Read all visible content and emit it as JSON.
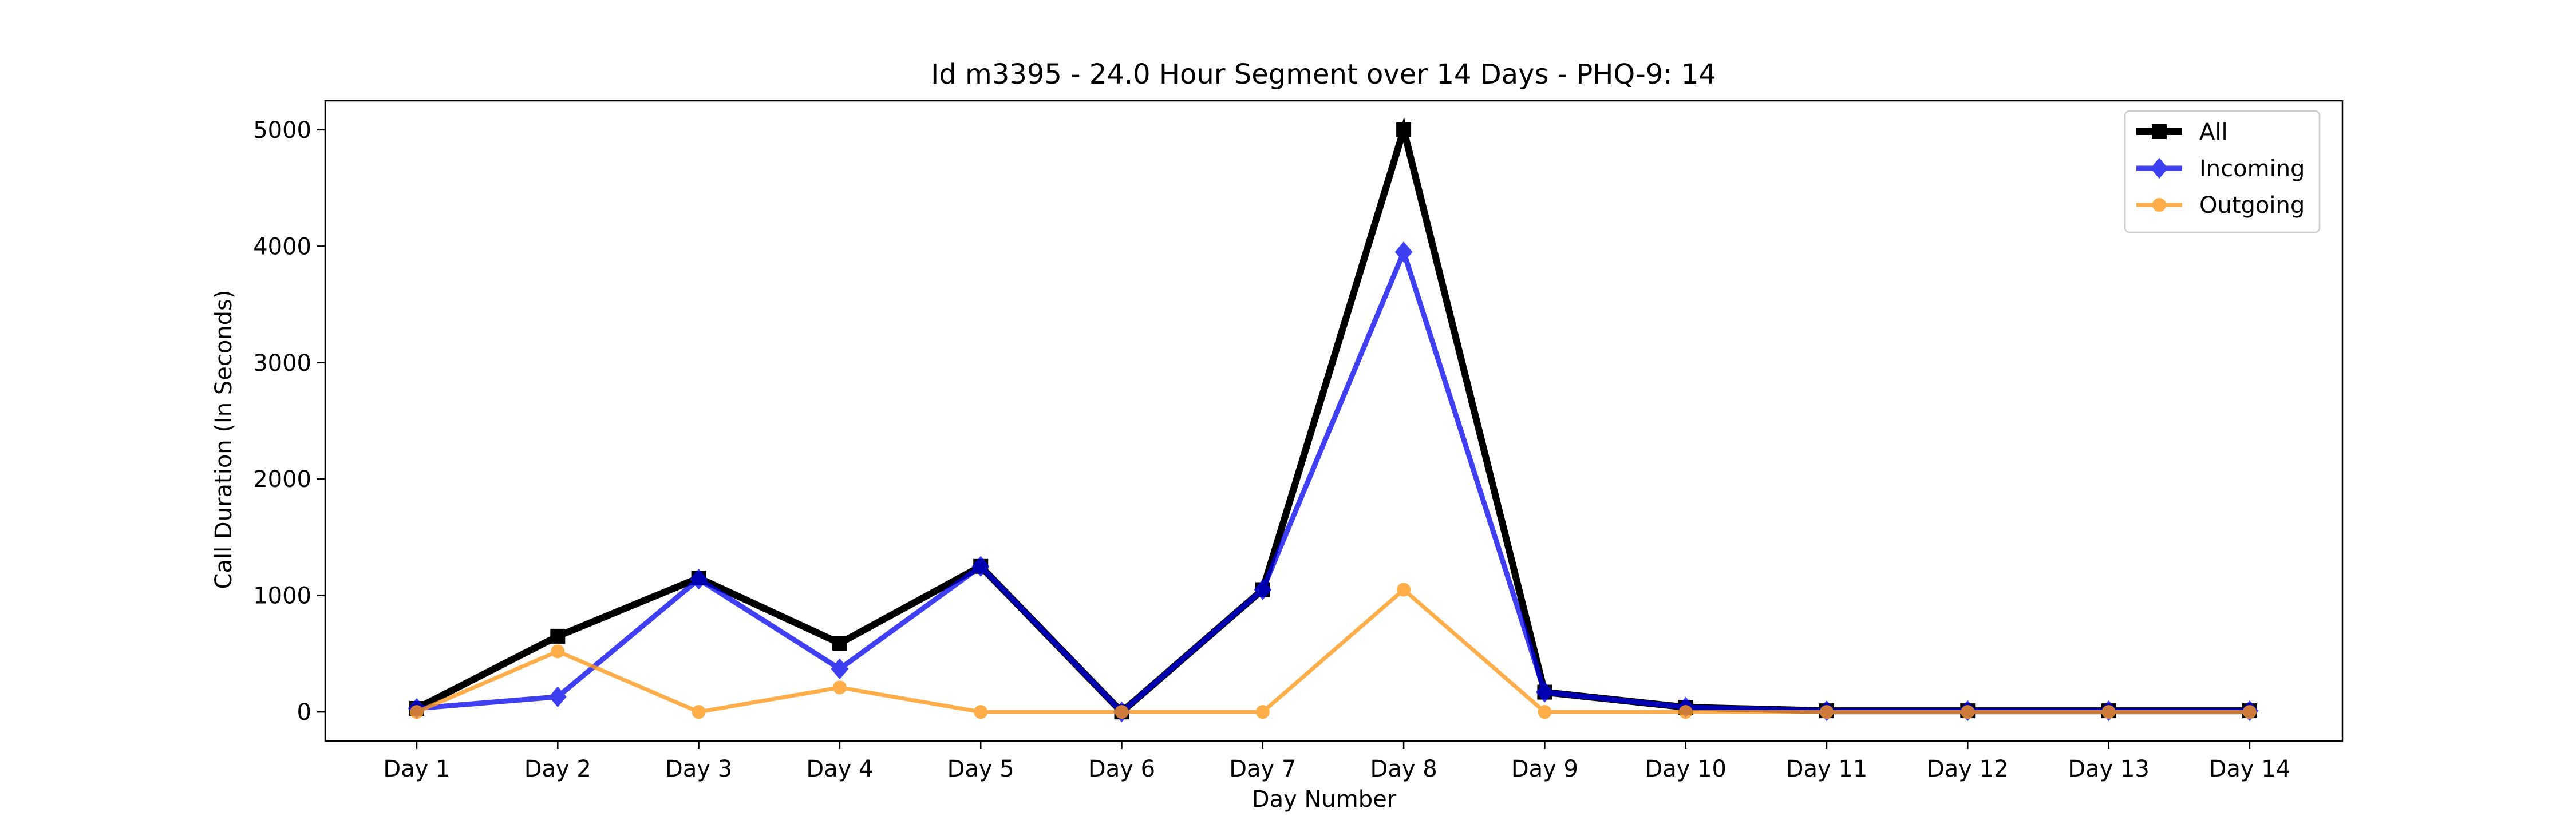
{
  "chart_data": {
    "type": "line",
    "title": "Id m3395 - 24.0 Hour Segment over 14 Days - PHQ-9: 14",
    "xlabel": "Day Number",
    "ylabel": "Call Duration (In Seconds)",
    "categories": [
      "Day 1",
      "Day 2",
      "Day 3",
      "Day 4",
      "Day 5",
      "Day 6",
      "Day 7",
      "Day 8",
      "Day 9",
      "Day 10",
      "Day 11",
      "Day 12",
      "Day 13",
      "Day 14"
    ],
    "ylim": [
      -250,
      5250
    ],
    "yticks": [
      0,
      1000,
      2000,
      3000,
      4000,
      5000
    ],
    "legend_position": "top-right",
    "grid": false,
    "series": [
      {
        "name": "All",
        "color": "#000000",
        "marker": "square",
        "values": [
          30,
          650,
          1150,
          590,
          1250,
          0,
          1050,
          5000,
          170,
          40,
          10,
          10,
          10,
          10
        ]
      },
      {
        "name": "Incoming",
        "color": "#0000ee",
        "marker": "diamond",
        "values": [
          30,
          130,
          1140,
          370,
          1250,
          0,
          1050,
          3950,
          170,
          40,
          10,
          10,
          10,
          10
        ]
      },
      {
        "name": "Outgoing",
        "color": "#ff9a1e",
        "marker": "circle",
        "values": [
          0,
          520,
          0,
          210,
          0,
          0,
          0,
          1050,
          0,
          0,
          0,
          0,
          0,
          0
        ]
      }
    ]
  }
}
